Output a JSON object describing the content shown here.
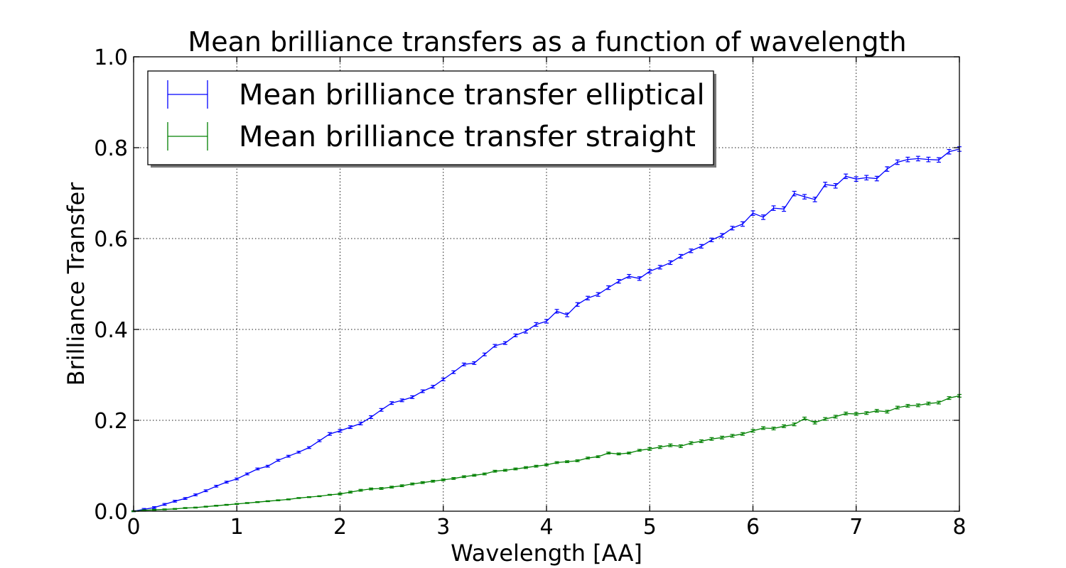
{
  "chart_data": {
    "type": "line",
    "title": "Mean brilliance transfers as a function of wavelength",
    "xlabel": "Wavelength [AA]",
    "ylabel": "Brilliance Transfer",
    "xlim": [
      0,
      8
    ],
    "ylim": [
      0,
      1.0
    ],
    "xticks": [
      0,
      1,
      2,
      3,
      4,
      5,
      6,
      7,
      8
    ],
    "xtick_labels": [
      "0",
      "1",
      "2",
      "3",
      "4",
      "5",
      "6",
      "7",
      "8"
    ],
    "yticks": [
      0.0,
      0.2,
      0.4,
      0.6,
      0.8,
      1.0
    ],
    "ytick_labels": [
      "0.0",
      "0.2",
      "0.4",
      "0.6",
      "0.8",
      "1.0"
    ],
    "grid": true,
    "legend_position": "upper-left",
    "error_bars": true,
    "series": [
      {
        "name": "Mean brilliance transfer elliptical",
        "color": "#0000ff",
        "x": [
          0.0,
          0.1,
          0.2,
          0.3,
          0.4,
          0.5,
          0.6,
          0.7,
          0.8,
          0.9,
          1.0,
          1.1,
          1.2,
          1.3,
          1.4,
          1.5,
          1.6,
          1.7,
          1.8,
          1.9,
          2.0,
          2.1,
          2.2,
          2.3,
          2.4,
          2.5,
          2.6,
          2.7,
          2.8,
          2.9,
          3.0,
          3.1,
          3.2,
          3.3,
          3.4,
          3.5,
          3.6,
          3.7,
          3.8,
          3.9,
          4.0,
          4.1,
          4.2,
          4.3,
          4.4,
          4.5,
          4.6,
          4.7,
          4.8,
          4.9,
          5.0,
          5.1,
          5.2,
          5.3,
          5.4,
          5.5,
          5.6,
          5.7,
          5.8,
          5.9,
          6.0,
          6.1,
          6.2,
          6.3,
          6.4,
          6.5,
          6.6,
          6.7,
          6.8,
          6.9,
          7.0,
          7.1,
          7.2,
          7.3,
          7.4,
          7.5,
          7.6,
          7.7,
          7.8,
          7.9,
          8.0
        ],
        "y": [
          0.0,
          0.004,
          0.008,
          0.015,
          0.022,
          0.028,
          0.036,
          0.045,
          0.055,
          0.064,
          0.071,
          0.082,
          0.093,
          0.099,
          0.112,
          0.121,
          0.13,
          0.14,
          0.155,
          0.17,
          0.177,
          0.185,
          0.193,
          0.207,
          0.223,
          0.238,
          0.244,
          0.251,
          0.264,
          0.274,
          0.29,
          0.306,
          0.323,
          0.326,
          0.345,
          0.364,
          0.37,
          0.387,
          0.396,
          0.411,
          0.418,
          0.44,
          0.432,
          0.455,
          0.469,
          0.477,
          0.492,
          0.506,
          0.517,
          0.512,
          0.528,
          0.537,
          0.547,
          0.561,
          0.573,
          0.583,
          0.597,
          0.607,
          0.623,
          0.632,
          0.656,
          0.647,
          0.667,
          0.665,
          0.699,
          0.692,
          0.686,
          0.719,
          0.716,
          0.737,
          0.731,
          0.734,
          0.732,
          0.753,
          0.768,
          0.774,
          0.776,
          0.774,
          0.773,
          0.791,
          0.797
        ],
        "err": [
          0.001,
          0.002,
          0.002,
          0.002,
          0.002,
          0.002,
          0.002,
          0.002,
          0.002,
          0.002,
          0.002,
          0.002,
          0.002,
          0.002,
          0.002,
          0.002,
          0.002,
          0.002,
          0.002,
          0.003,
          0.003,
          0.003,
          0.003,
          0.003,
          0.003,
          0.003,
          0.003,
          0.003,
          0.003,
          0.003,
          0.003,
          0.003,
          0.003,
          0.003,
          0.003,
          0.003,
          0.003,
          0.003,
          0.004,
          0.004,
          0.004,
          0.004,
          0.004,
          0.004,
          0.004,
          0.004,
          0.004,
          0.004,
          0.004,
          0.004,
          0.004,
          0.004,
          0.004,
          0.004,
          0.004,
          0.004,
          0.004,
          0.004,
          0.004,
          0.005,
          0.005,
          0.005,
          0.005,
          0.005,
          0.005,
          0.005,
          0.005,
          0.005,
          0.005,
          0.005,
          0.005,
          0.005,
          0.005,
          0.005,
          0.005,
          0.005,
          0.005,
          0.005,
          0.005,
          0.005,
          0.005
        ]
      },
      {
        "name": "Mean brilliance transfer straight",
        "color": "#008000",
        "x": [
          0.0,
          0.1,
          0.2,
          0.3,
          0.4,
          0.5,
          0.6,
          0.7,
          0.8,
          0.9,
          1.0,
          1.1,
          1.2,
          1.3,
          1.4,
          1.5,
          1.6,
          1.7,
          1.8,
          1.9,
          2.0,
          2.1,
          2.2,
          2.3,
          2.4,
          2.5,
          2.6,
          2.7,
          2.8,
          2.9,
          3.0,
          3.1,
          3.2,
          3.3,
          3.4,
          3.5,
          3.6,
          3.7,
          3.8,
          3.9,
          4.0,
          4.1,
          4.2,
          4.3,
          4.4,
          4.5,
          4.6,
          4.7,
          4.8,
          4.9,
          5.0,
          5.1,
          5.2,
          5.3,
          5.4,
          5.5,
          5.6,
          5.7,
          5.8,
          5.9,
          6.0,
          6.1,
          6.2,
          6.3,
          6.4,
          6.5,
          6.6,
          6.7,
          6.8,
          6.9,
          7.0,
          7.1,
          7.2,
          7.3,
          7.4,
          7.5,
          7.6,
          7.7,
          7.8,
          7.9,
          8.0
        ],
        "y": [
          0.0,
          0.002,
          0.003,
          0.004,
          0.005,
          0.007,
          0.008,
          0.01,
          0.012,
          0.014,
          0.016,
          0.018,
          0.02,
          0.022,
          0.024,
          0.026,
          0.029,
          0.031,
          0.033,
          0.036,
          0.038,
          0.042,
          0.046,
          0.049,
          0.05,
          0.053,
          0.056,
          0.06,
          0.063,
          0.066,
          0.069,
          0.072,
          0.076,
          0.079,
          0.082,
          0.088,
          0.09,
          0.093,
          0.096,
          0.099,
          0.102,
          0.107,
          0.109,
          0.111,
          0.117,
          0.12,
          0.128,
          0.126,
          0.128,
          0.134,
          0.137,
          0.141,
          0.145,
          0.143,
          0.15,
          0.154,
          0.159,
          0.162,
          0.166,
          0.17,
          0.177,
          0.183,
          0.182,
          0.187,
          0.191,
          0.204,
          0.195,
          0.203,
          0.208,
          0.215,
          0.214,
          0.216,
          0.221,
          0.219,
          0.228,
          0.232,
          0.233,
          0.237,
          0.239,
          0.249,
          0.254
        ],
        "err": [
          0.001,
          0.001,
          0.001,
          0.001,
          0.001,
          0.001,
          0.001,
          0.001,
          0.001,
          0.001,
          0.001,
          0.001,
          0.001,
          0.001,
          0.001,
          0.001,
          0.001,
          0.001,
          0.001,
          0.001,
          0.002,
          0.002,
          0.002,
          0.002,
          0.002,
          0.002,
          0.002,
          0.002,
          0.002,
          0.002,
          0.002,
          0.002,
          0.002,
          0.002,
          0.002,
          0.002,
          0.002,
          0.002,
          0.002,
          0.002,
          0.002,
          0.002,
          0.002,
          0.002,
          0.002,
          0.002,
          0.002,
          0.002,
          0.002,
          0.002,
          0.003,
          0.003,
          0.003,
          0.003,
          0.003,
          0.003,
          0.003,
          0.003,
          0.003,
          0.003,
          0.003,
          0.003,
          0.003,
          0.003,
          0.003,
          0.003,
          0.003,
          0.003,
          0.003,
          0.003,
          0.003,
          0.003,
          0.003,
          0.003,
          0.003,
          0.003,
          0.003,
          0.003,
          0.003,
          0.003,
          0.003
        ]
      }
    ]
  }
}
